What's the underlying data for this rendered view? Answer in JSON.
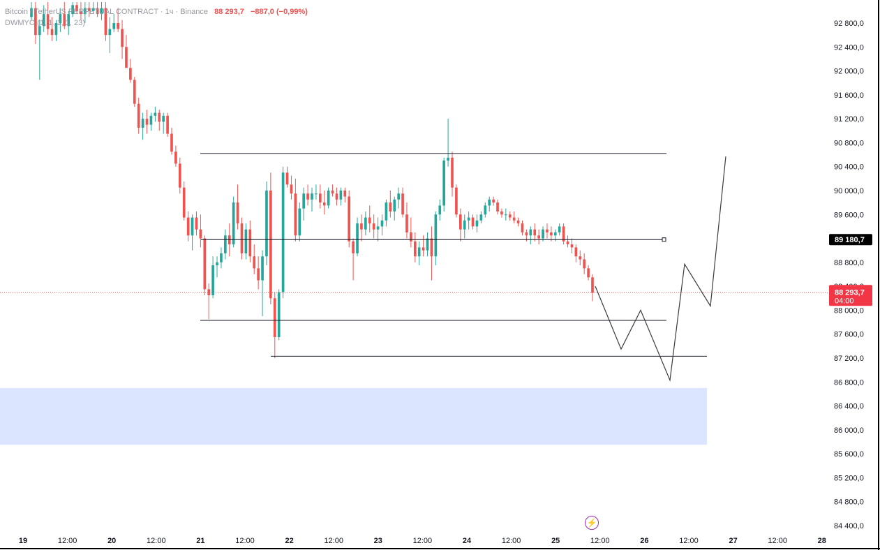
{
  "header": {
    "symbol_line": "Bitcoin / TetherUS PERPETUAL CONTRACT · 1ч · Binance",
    "last_price": "88 293,7",
    "change": "−887,0 (−0,99%)",
    "indicator": "DWMYO (1, 1, 1, 1, 23)"
  },
  "price_axis": {
    "ticks": [
      "92 800,0",
      "92 400,0",
      "92 000,0",
      "91 600,0",
      "91 200,0",
      "90 800,0",
      "90 400,0",
      "90 000,0",
      "89 600,0",
      "88 800,0",
      "88 400,0",
      "88 000,0",
      "87 600,0",
      "87 200,0",
      "86 800,0",
      "86 400,0",
      "86 000,0",
      "85 600,0",
      "85 200,0",
      "84 800,0",
      "84 400,0"
    ],
    "marked_line_label": "89 180,7",
    "current_price_label": "88 293,7",
    "countdown_label": "04:00"
  },
  "time_axis": {
    "labels": [
      "19",
      "12:00",
      "20",
      "12:00",
      "21",
      "12:00",
      "22",
      "12:00",
      "23",
      "12:00",
      "24",
      "12:00",
      "25",
      "12:00",
      "26",
      "12:00",
      "27",
      "12:00",
      "28"
    ]
  },
  "colors": {
    "up": "#26a69a",
    "down": "#ef5350",
    "zone": "#dbe5ff",
    "line": "#131722",
    "price_tag": "#f23645",
    "marked_tag": "#000000"
  },
  "icons": {
    "alert": "lightning-icon"
  },
  "chart_data": {
    "type": "candlestick",
    "timeframe": "1h",
    "ylim": [
      84400,
      93200
    ],
    "x_labels": [
      "19",
      "12:00",
      "20",
      "12:00",
      "21",
      "12:00",
      "22",
      "12:00",
      "23",
      "12:00",
      "24",
      "12:00",
      "25",
      "12:00",
      "26",
      "12:00",
      "27",
      "12:00",
      "28"
    ],
    "candles_ohlc": [
      [
        92900,
        93150,
        92850,
        93050
      ],
      [
        93050,
        93150,
        92450,
        92600
      ],
      [
        92600,
        92850,
        91850,
        92750
      ],
      [
        92750,
        93100,
        92650,
        92950
      ],
      [
        92950,
        93150,
        92600,
        92700
      ],
      [
        92700,
        92900,
        92500,
        92600
      ],
      [
        92600,
        92850,
        92500,
        92800
      ],
      [
        92800,
        93050,
        92650,
        92950
      ],
      [
        92950,
        93150,
        92700,
        92750
      ],
      [
        92750,
        93000,
        92600,
        92950
      ],
      [
        92950,
        93150,
        92900,
        93100
      ],
      [
        93100,
        93150,
        92950,
        93000
      ],
      [
        93000,
        93150,
        92850,
        92950
      ],
      [
        92950,
        93150,
        92800,
        93050
      ],
      [
        93050,
        93150,
        92900,
        93000
      ],
      [
        93000,
        93150,
        92950,
        93050
      ],
      [
        93050,
        93150,
        92900,
        92950
      ],
      [
        92950,
        93150,
        92850,
        93050
      ],
      [
        93050,
        93150,
        92500,
        92600
      ],
      [
        92600,
        92900,
        92300,
        92700
      ],
      [
        92700,
        92950,
        92650,
        92800
      ],
      [
        92800,
        93050,
        92650,
        92700
      ],
      [
        92700,
        92850,
        92200,
        92400
      ],
      [
        92400,
        92600,
        92100,
        92050
      ],
      [
        92050,
        92200,
        91800,
        91850
      ],
      [
        91850,
        91900,
        91400,
        91450
      ],
      [
        91450,
        91550,
        90950,
        91050
      ],
      [
        91050,
        91300,
        90850,
        91200
      ],
      [
        91200,
        91350,
        90950,
        91100
      ],
      [
        91100,
        91300,
        91000,
        91250
      ],
      [
        91250,
        91400,
        91150,
        91300
      ],
      [
        91300,
        91350,
        91000,
        91150
      ],
      [
        91150,
        91300,
        90950,
        91250
      ],
      [
        91250,
        91300,
        90900,
        90950
      ],
      [
        90950,
        91050,
        90600,
        90650
      ],
      [
        90650,
        90750,
        90400,
        90450
      ],
      [
        90450,
        90550,
        89950,
        90050
      ],
      [
        90050,
        90150,
        89500,
        89550
      ],
      [
        89550,
        89650,
        89150,
        89250
      ],
      [
        89250,
        89600,
        89000,
        89550
      ],
      [
        89550,
        89650,
        89250,
        89350
      ],
      [
        89350,
        89600,
        89050,
        89200
      ],
      [
        89200,
        89250,
        88250,
        88350
      ],
      [
        88350,
        88450,
        87850,
        88250
      ],
      [
        88250,
        88900,
        88200,
        88750
      ],
      [
        88750,
        88900,
        88550,
        88800
      ],
      [
        88800,
        89050,
        88700,
        88950
      ],
      [
        88950,
        89350,
        88850,
        89250
      ],
      [
        89250,
        89450,
        88900,
        89100
      ],
      [
        89100,
        89900,
        89050,
        89800
      ],
      [
        89800,
        90100,
        89350,
        89450
      ],
      [
        89450,
        89550,
        88850,
        88950
      ],
      [
        88950,
        89450,
        88850,
        89350
      ],
      [
        89350,
        89500,
        88800,
        88900
      ],
      [
        88900,
        89100,
        88600,
        88700
      ],
      [
        88700,
        88900,
        88350,
        88500
      ],
      [
        88500,
        89000,
        87900,
        88900
      ],
      [
        88900,
        90150,
        88750,
        90000
      ],
      [
        90000,
        90300,
        88100,
        88200
      ],
      [
        88200,
        88300,
        87200,
        87550
      ],
      [
        87550,
        88350,
        87500,
        88300
      ],
      [
        88300,
        90400,
        88200,
        90300
      ],
      [
        90300,
        90400,
        90050,
        90100
      ],
      [
        90100,
        90250,
        89850,
        89950
      ],
      [
        89950,
        90200,
        89150,
        89250
      ],
      [
        89250,
        89800,
        89150,
        89700
      ],
      [
        89700,
        90050,
        89500,
        89950
      ],
      [
        89950,
        90100,
        89750,
        89850
      ],
      [
        89850,
        90050,
        89650,
        89950
      ],
      [
        89950,
        90100,
        89850,
        89950
      ],
      [
        89950,
        90100,
        89700,
        89800
      ],
      [
        89800,
        90000,
        89600,
        89750
      ],
      [
        89750,
        90050,
        89700,
        90000
      ],
      [
        90000,
        90100,
        89900,
        89950
      ],
      [
        89950,
        90050,
        89750,
        89850
      ],
      [
        89850,
        90050,
        89750,
        90000
      ],
      [
        90000,
        90050,
        89800,
        89900
      ],
      [
        89900,
        90000,
        89050,
        89150
      ],
      [
        89150,
        89200,
        88500,
        88950
      ],
      [
        88950,
        89550,
        88900,
        89450
      ],
      [
        89450,
        89600,
        89150,
        89350
      ],
      [
        89350,
        89650,
        89250,
        89550
      ],
      [
        89550,
        89750,
        89300,
        89450
      ],
      [
        89450,
        89600,
        89200,
        89350
      ],
      [
        89350,
        89550,
        89150,
        89400
      ],
      [
        89400,
        89600,
        89250,
        89500
      ],
      [
        89500,
        89850,
        89400,
        89800
      ],
      [
        89800,
        90000,
        89550,
        89650
      ],
      [
        89650,
        89900,
        89500,
        89850
      ],
      [
        89850,
        90050,
        89700,
        89950
      ],
      [
        89950,
        90050,
        89550,
        89600
      ],
      [
        89600,
        89800,
        89200,
        89300
      ],
      [
        89300,
        89550,
        89050,
        89150
      ],
      [
        89150,
        89300,
        88800,
        88900
      ],
      [
        88900,
        89150,
        88750,
        89050
      ],
      [
        89050,
        89250,
        88900,
        89000
      ],
      [
        89000,
        89300,
        88900,
        89200
      ],
      [
        89200,
        89400,
        88500,
        88900
      ],
      [
        88900,
        89650,
        88750,
        89600
      ],
      [
        89600,
        89850,
        89500,
        89750
      ],
      [
        89750,
        90550,
        89650,
        90500
      ],
      [
        90500,
        91200,
        90400,
        90550
      ],
      [
        90550,
        90650,
        89900,
        90050
      ],
      [
        90050,
        90100,
        89550,
        89600
      ],
      [
        89600,
        89700,
        89150,
        89350
      ],
      [
        89350,
        89600,
        89200,
        89500
      ],
      [
        89500,
        89650,
        89350,
        89550
      ],
      [
        89550,
        89600,
        89350,
        89400
      ],
      [
        89400,
        89600,
        89300,
        89500
      ],
      [
        89500,
        89650,
        89450,
        89600
      ],
      [
        89600,
        89800,
        89550,
        89750
      ],
      [
        89750,
        89900,
        89650,
        89850
      ],
      [
        89850,
        89900,
        89750,
        89800
      ],
      [
        89800,
        89850,
        89600,
        89650
      ],
      [
        89650,
        89700,
        89550,
        89600
      ],
      [
        89600,
        89700,
        89500,
        89600
      ],
      [
        89600,
        89650,
        89500,
        89550
      ],
      [
        89550,
        89650,
        89450,
        89500
      ],
      [
        89500,
        89550,
        89400,
        89450
      ],
      [
        89450,
        89500,
        89250,
        89300
      ],
      [
        89300,
        89350,
        89150,
        89250
      ],
      [
        89250,
        89400,
        89100,
        89350
      ],
      [
        89350,
        89450,
        89150,
        89250
      ],
      [
        89250,
        89350,
        89100,
        89200
      ],
      [
        89200,
        89400,
        89150,
        89350
      ],
      [
        89350,
        89450,
        89200,
        89300
      ],
      [
        89300,
        89400,
        89150,
        89250
      ],
      [
        89250,
        89350,
        89150,
        89300
      ],
      [
        89300,
        89450,
        89250,
        89400
      ],
      [
        89400,
        89450,
        89100,
        89150
      ],
      [
        89150,
        89250,
        89050,
        89100
      ],
      [
        89100,
        89200,
        88950,
        89050
      ],
      [
        89050,
        89100,
        88800,
        88900
      ],
      [
        88900,
        89000,
        88750,
        88850
      ],
      [
        88850,
        88950,
        88600,
        88700
      ],
      [
        88700,
        88750,
        88500,
        88550
      ],
      [
        88550,
        88600,
        88150,
        88290
      ]
    ],
    "candle_x_range": [
      45,
      849
    ],
    "horizontal_levels": [
      {
        "price": 90620,
        "x_range": [
          287,
          955
        ]
      },
      {
        "price": 89180.7,
        "x_range": [
          288,
          952
        ]
      },
      {
        "price": 87830,
        "x_range": [
          287,
          955
        ]
      },
      {
        "price": 87230,
        "x_range": [
          388,
          1013
        ]
      }
    ],
    "zone": {
      "price_from": 86700,
      "price_to": 85750,
      "x_range": [
        0,
        1013
      ]
    },
    "projection_path": [
      [
        853,
        88400
      ],
      [
        890,
        87350
      ],
      [
        918,
        88000
      ],
      [
        960,
        86830
      ],
      [
        981,
        88770
      ],
      [
        1018,
        88070
      ],
      [
        1040,
        90570
      ]
    ],
    "current_price": 88293.7,
    "marked_price": 89180.7
  }
}
